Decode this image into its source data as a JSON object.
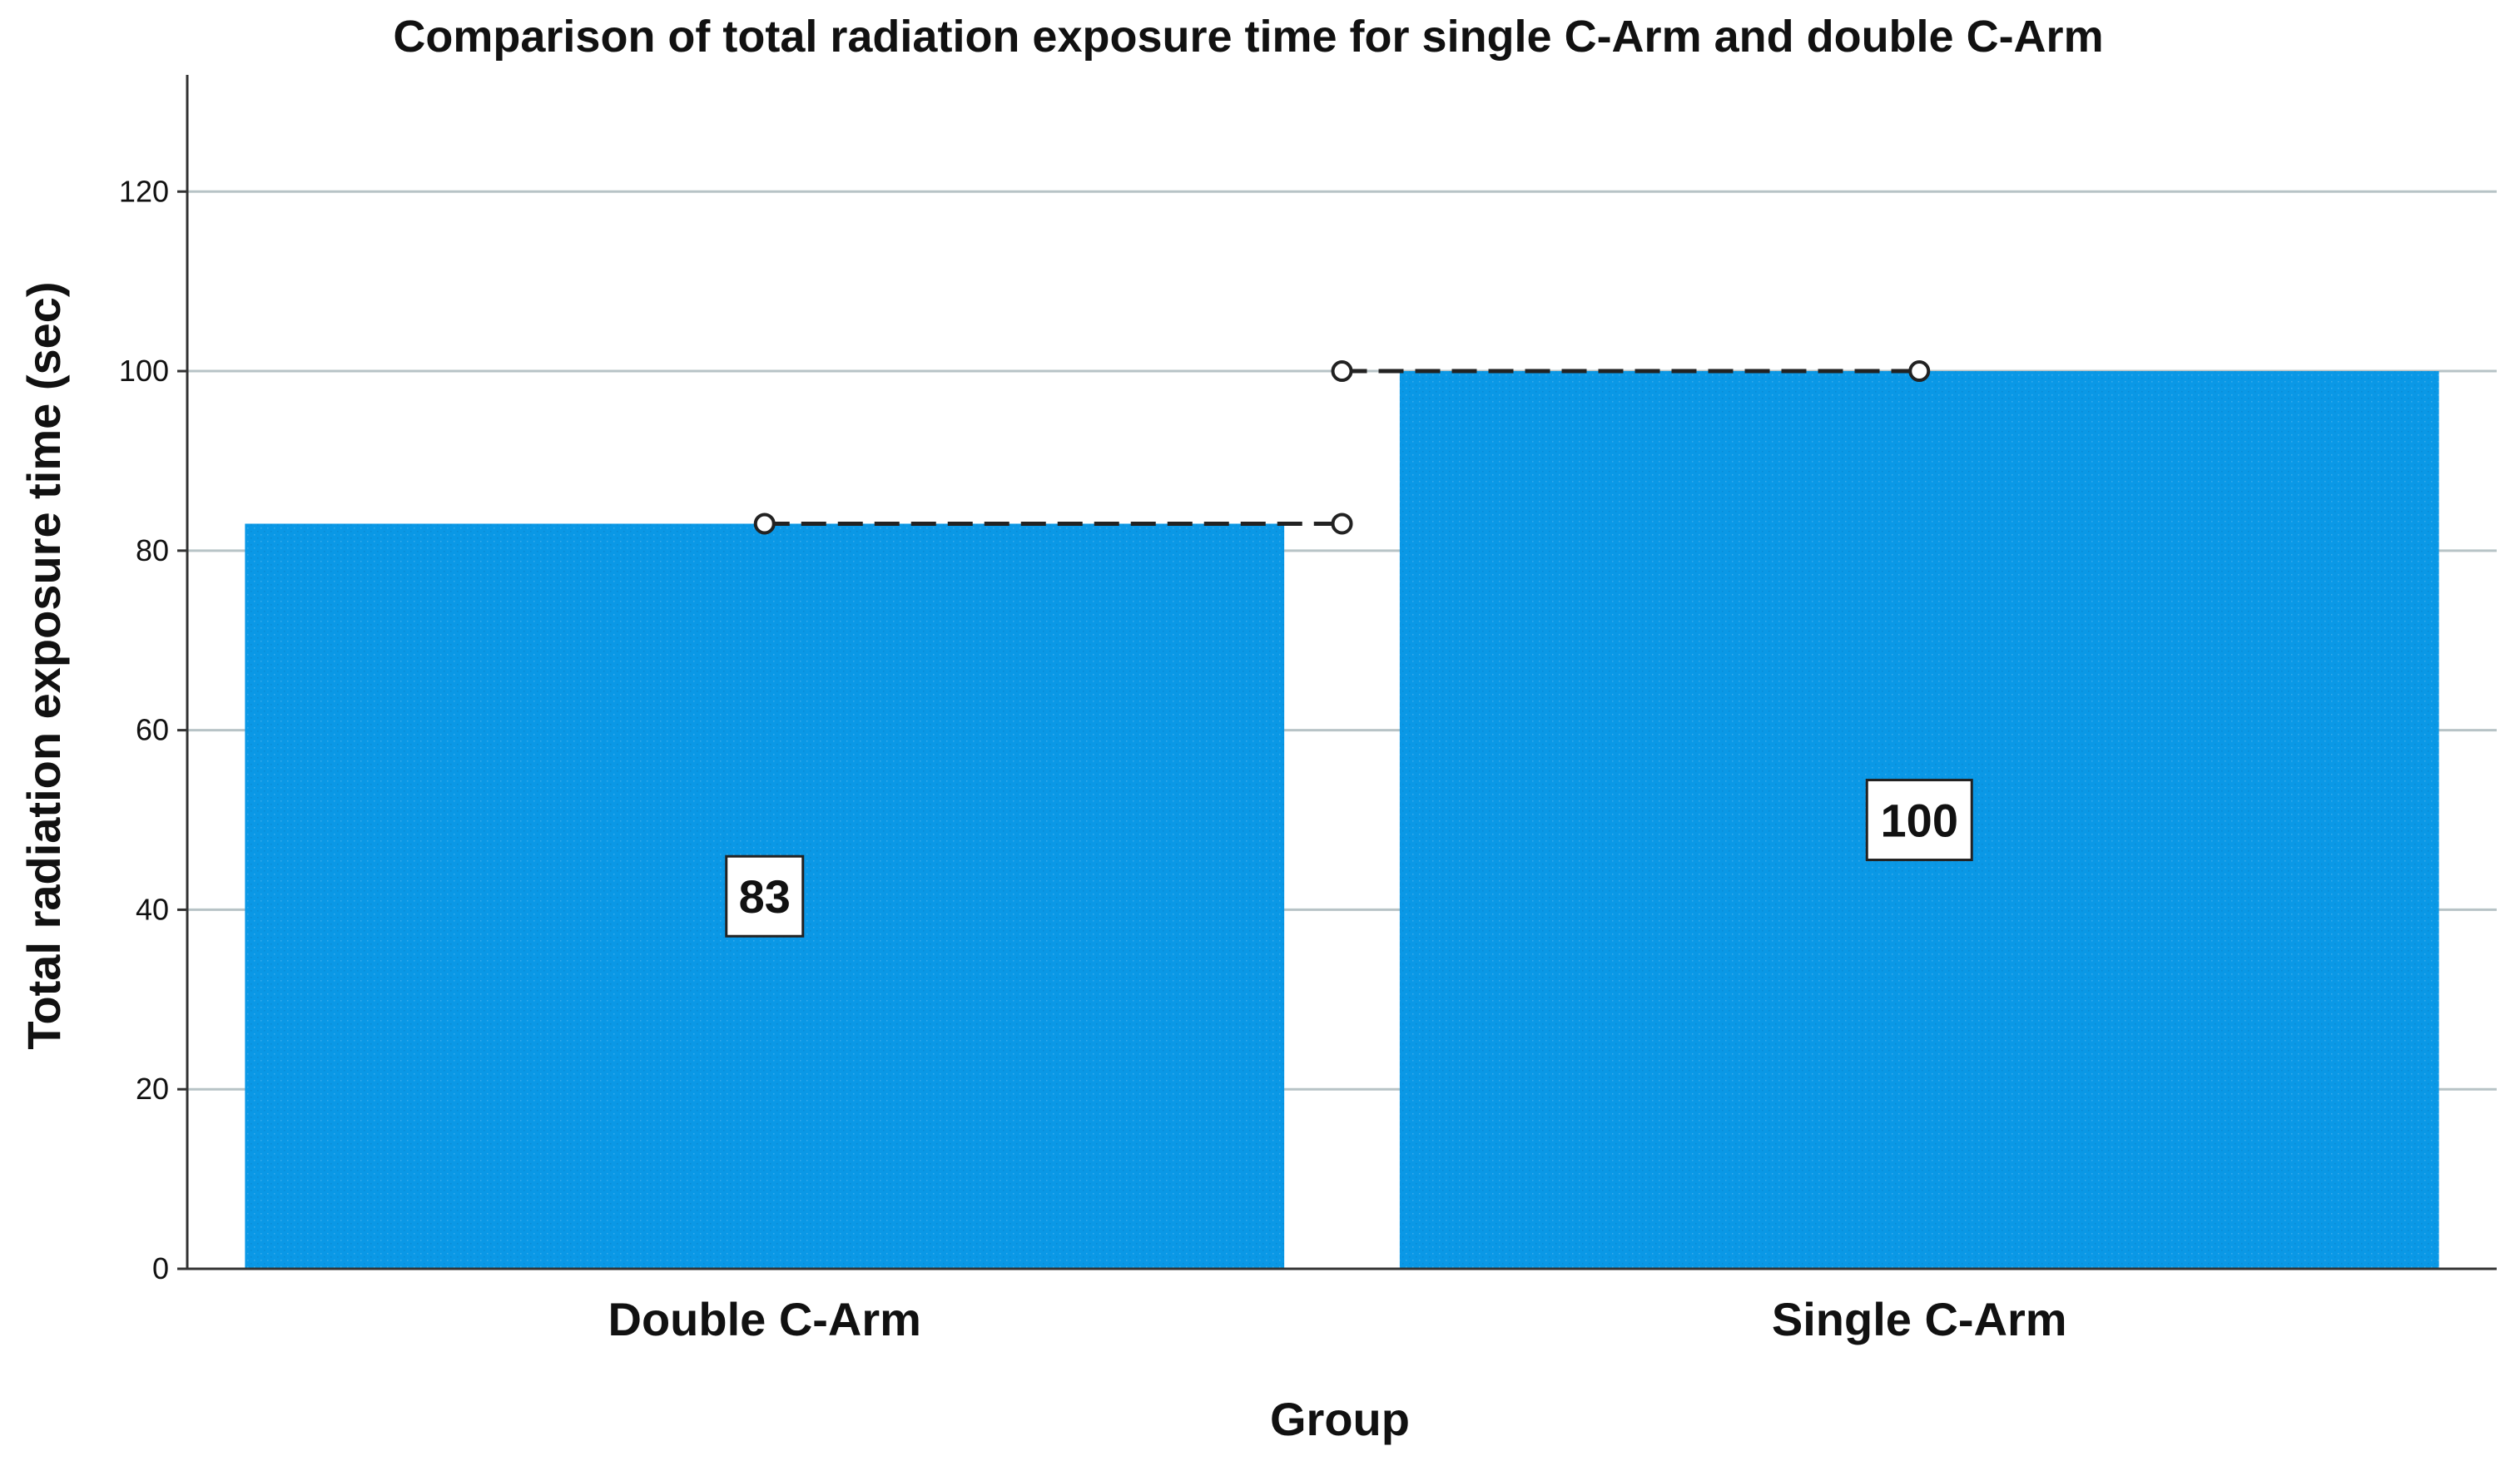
{
  "chart_data": {
    "type": "bar",
    "title": "Comparison of total radiation exposure time for single C-Arm and double C-Arm",
    "xlabel": "Group",
    "ylabel": "Total radiation exposure time (sec)",
    "categories": [
      "Double C-Arm",
      "Single C-Arm"
    ],
    "values": [
      83,
      100
    ],
    "data_labels": [
      "83",
      "100"
    ],
    "ylim": [
      0,
      133
    ],
    "yticks": [
      0,
      20,
      40,
      60,
      80,
      100,
      120
    ],
    "grid": true,
    "legend": "none",
    "connector_lines": "dashed",
    "colors": {
      "bar": "#0a98e6",
      "grid": "#b7c3c6",
      "axis": "#333333",
      "connector": "#222222"
    }
  }
}
